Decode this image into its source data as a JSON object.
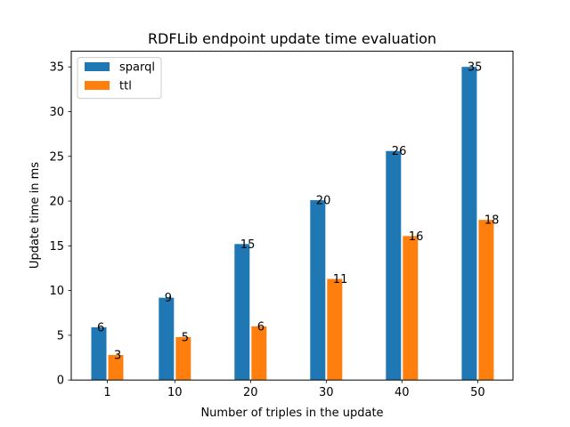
{
  "chart_data": {
    "type": "bar",
    "title": "RDFLib endpoint update time evaluation",
    "xlabel": "Number of triples in the update",
    "ylabel": "Update time in ms",
    "categories": [
      "1",
      "10",
      "20",
      "30",
      "40",
      "50"
    ],
    "ylim": [
      0,
      36.75
    ],
    "yticks": [
      0,
      5,
      10,
      15,
      20,
      25,
      30,
      35
    ],
    "grid": false,
    "legend_position": "top-left",
    "series": [
      {
        "name": "sparql",
        "color": "#1f77b4",
        "values": [
          5.9,
          9.2,
          15.2,
          20.1,
          25.6,
          35.0
        ],
        "labels": [
          "6",
          "9",
          "15",
          "20",
          "26",
          "35"
        ]
      },
      {
        "name": "ttl",
        "color": "#ff7f0e",
        "values": [
          2.8,
          4.8,
          6.0,
          11.3,
          16.1,
          17.9
        ],
        "labels": [
          "3",
          "5",
          "6",
          "11",
          "16",
          "18"
        ]
      }
    ]
  }
}
